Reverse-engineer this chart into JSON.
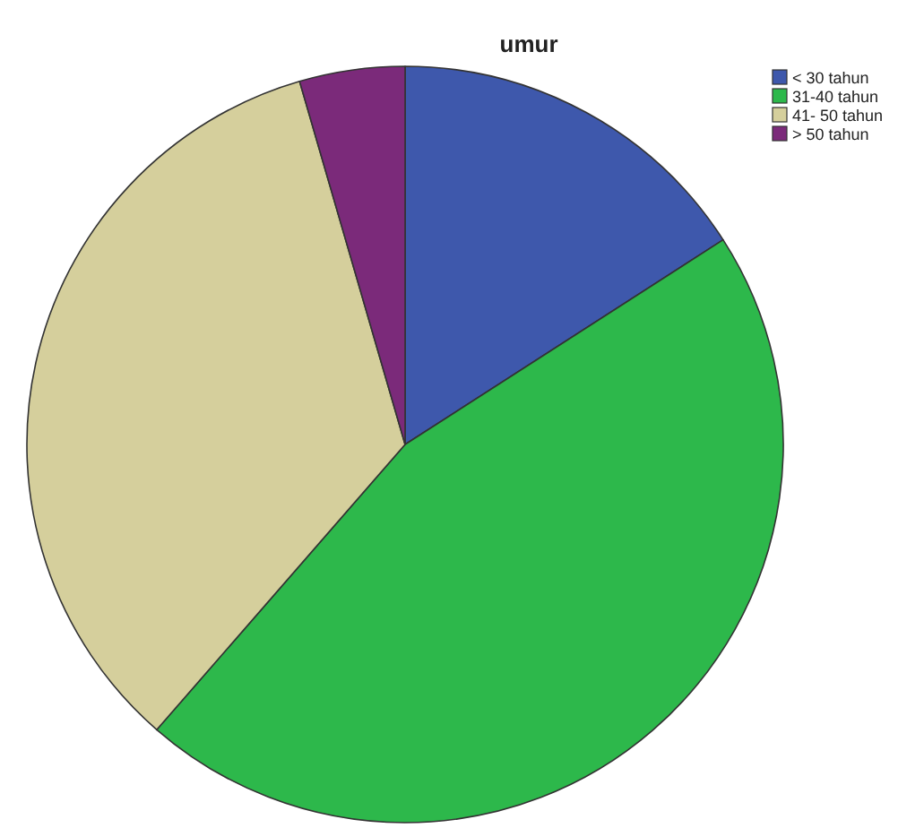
{
  "chart_data": {
    "type": "pie",
    "title": "umur",
    "categories": [
      "< 30 tahun",
      "31-40 tahun",
      "41- 50 tahun",
      "> 50 tahun"
    ],
    "values": [
      15.9,
      45.5,
      34.1,
      4.5
    ],
    "colors": [
      "#3e58ac",
      "#2db84b",
      "#d5cf9c",
      "#7b2a7a"
    ],
    "legend": "top right"
  }
}
